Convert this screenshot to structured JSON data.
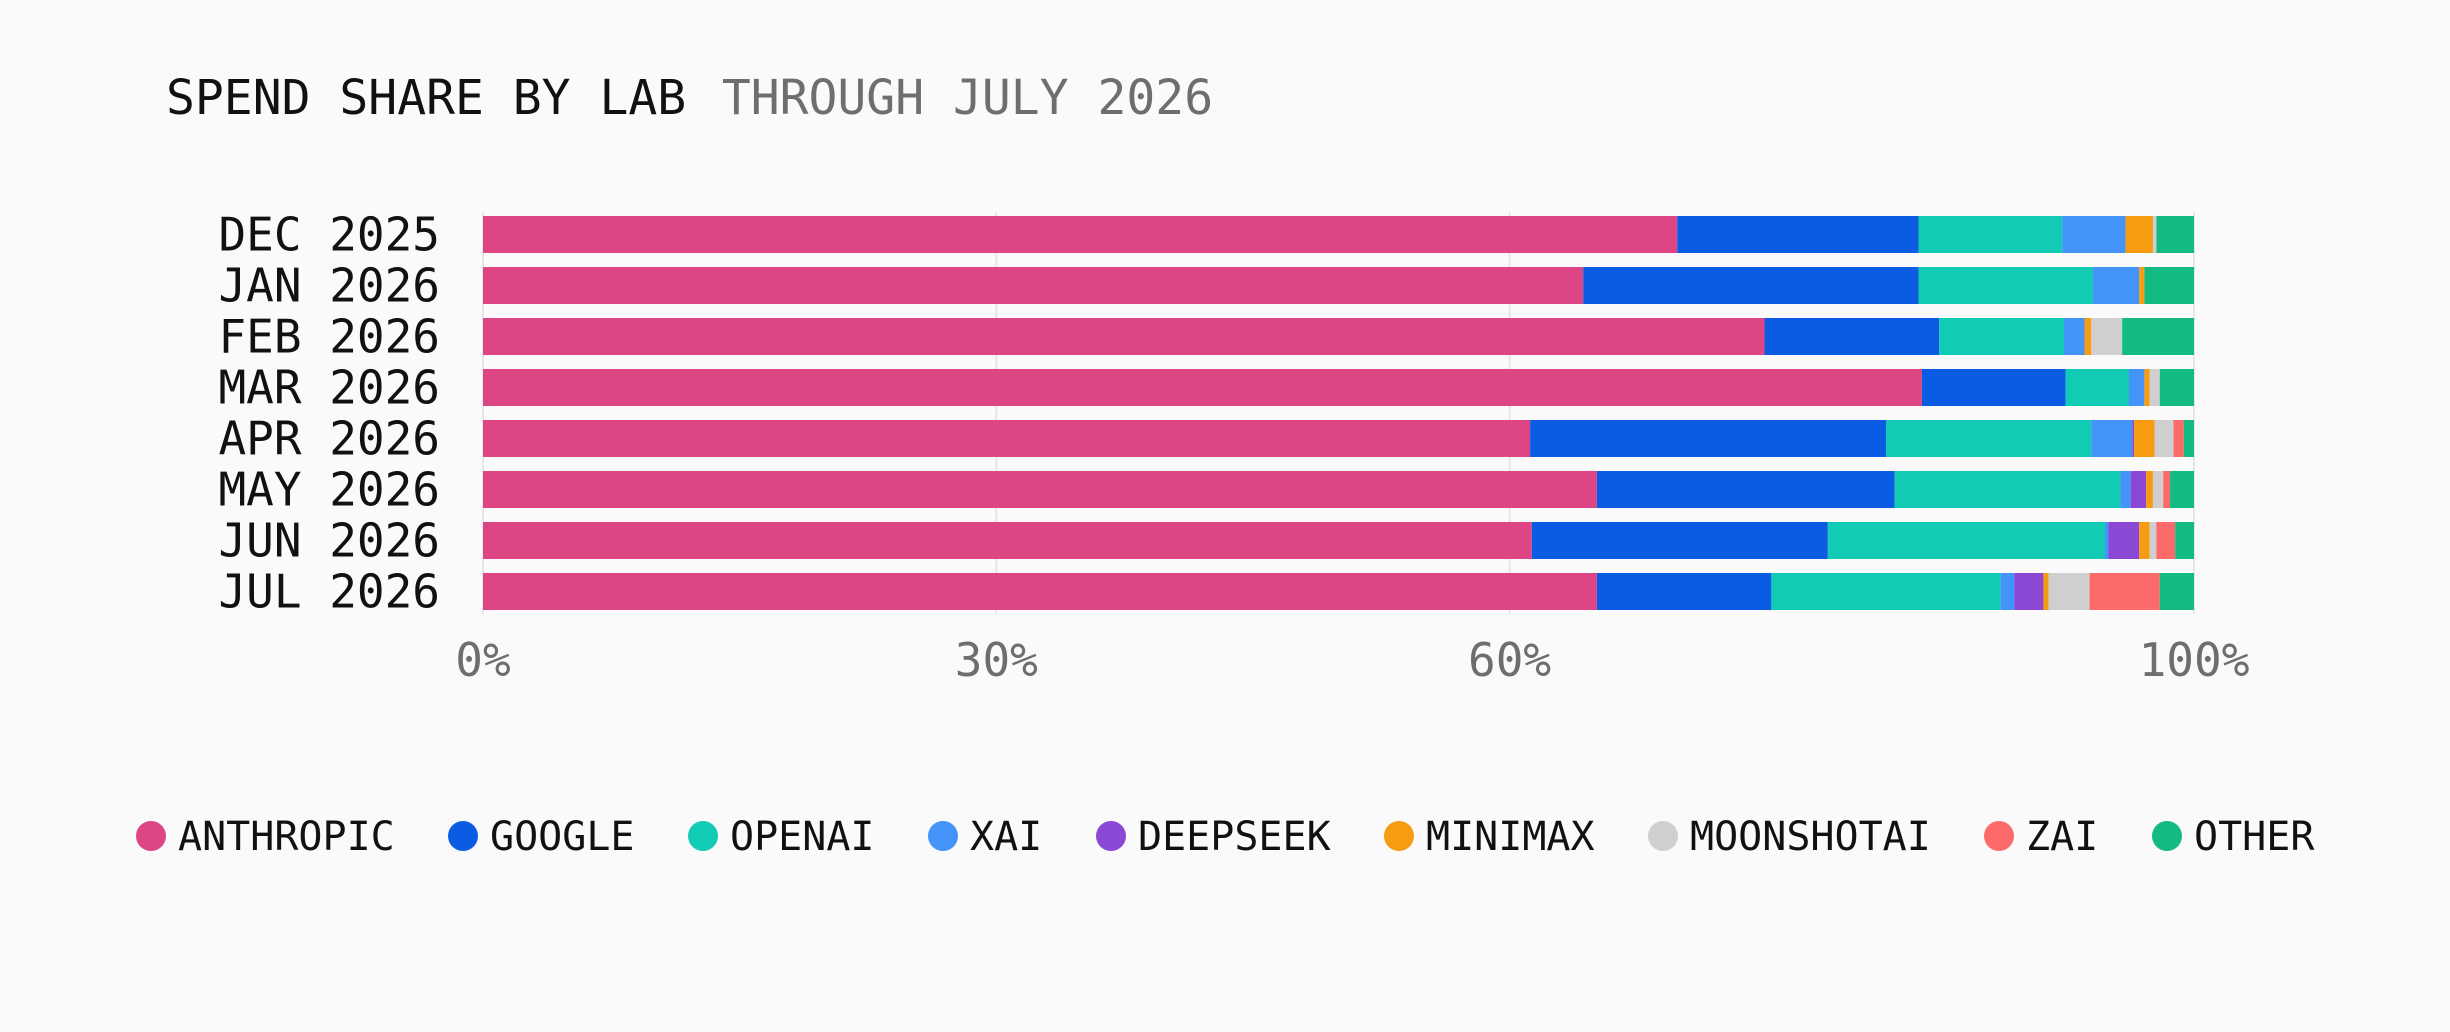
{
  "chart_data": {
    "type": "bar",
    "orientation": "horizontal",
    "stacked": true,
    "title": "SPEND SHARE BY LAB",
    "subtitle": "THROUGH JULY 2026",
    "categories": [
      "DEC 2025",
      "JAN 2026",
      "FEB 2026",
      "MAR 2026",
      "APR 2026",
      "MAY 2026",
      "JUN 2026",
      "JUL 2026"
    ],
    "xlim": [
      0,
      100
    ],
    "x_ticks": [
      0,
      30,
      60,
      100
    ],
    "x_tick_labels": [
      "0%",
      "30%",
      "60%",
      "100%"
    ],
    "grid": true,
    "legend_position": "bottom",
    "series": [
      {
        "name": "ANTHROPIC",
        "color": "#de4585",
        "values": [
          69.8,
          64.3,
          74.9,
          84.1,
          61.2,
          65.1,
          61.3,
          65.1
        ]
      },
      {
        "name": "GOOGLE",
        "color": "#0a5de3",
        "values": [
          14.1,
          19.6,
          10.2,
          8.4,
          20.8,
          17.4,
          17.3,
          10.2
        ]
      },
      {
        "name": "OPENAI",
        "color": "#12cbb5",
        "values": [
          8.4,
          10.2,
          7.3,
          3.7,
          12.0,
          13.2,
          16.2,
          13.4
        ]
      },
      {
        "name": "XAI",
        "color": "#4493f8",
        "values": [
          3.7,
          2.7,
          1.2,
          0.9,
          2.4,
          0.6,
          0.2,
          0.8
        ]
      },
      {
        "name": "DEEPSEEK",
        "color": "#8a48d4",
        "values": [
          0.0,
          0.0,
          0.0,
          0.0,
          0.1,
          0.9,
          1.8,
          1.7
        ]
      },
      {
        "name": "MINIMAX",
        "color": "#f79c11",
        "values": [
          1.6,
          0.3,
          0.4,
          0.3,
          1.2,
          0.4,
          0.6,
          0.3
        ]
      },
      {
        "name": "MOONSHOTAI",
        "color": "#cfcfcf",
        "values": [
          0.2,
          0.0,
          1.8,
          0.6,
          1.1,
          0.6,
          0.4,
          2.4
        ]
      },
      {
        "name": "ZAI",
        "color": "#fd6a6a",
        "values": [
          0.0,
          0.0,
          0.0,
          0.0,
          0.6,
          0.4,
          1.1,
          4.1
        ]
      },
      {
        "name": "OTHER",
        "color": "#13ba82",
        "values": [
          2.2,
          2.9,
          4.2,
          2.0,
          0.6,
          1.4,
          1.1,
          2.0
        ]
      }
    ]
  }
}
